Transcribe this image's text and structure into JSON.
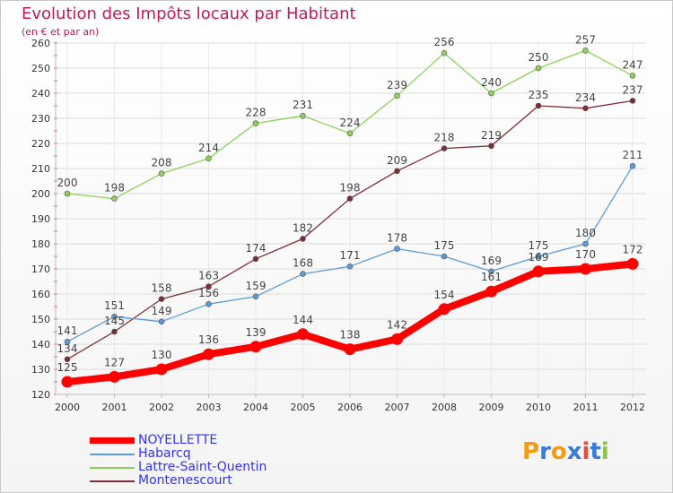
{
  "title": "Evolution des Impôts locaux par Habitant",
  "subtitle": "(en € et par an)",
  "logo": {
    "text": "Proxiti",
    "letters": [
      "P",
      "r",
      "o",
      "x",
      "i",
      "t",
      "i"
    ],
    "colors": [
      "#f39c12",
      "#3a7bd5",
      "#f39c12",
      "#3a7bd5",
      "#e74c3c",
      "#3a7bd5",
      "#8bc34a"
    ]
  },
  "chart_data": {
    "type": "line",
    "categories": [
      "2000",
      "2001",
      "2002",
      "2003",
      "2004",
      "2005",
      "2006",
      "2007",
      "2008",
      "2009",
      "2010",
      "2011",
      "2012"
    ],
    "ylim": [
      120,
      260
    ],
    "yticks": [
      120,
      130,
      140,
      150,
      160,
      170,
      180,
      190,
      200,
      210,
      220,
      230,
      240,
      250,
      260
    ],
    "grid": true,
    "legend_position": "bottom",
    "series": [
      {
        "name": "NOYELLETTE",
        "color": "#ff0000",
        "values": [
          125,
          127,
          130,
          136,
          139,
          144,
          138,
          142,
          154,
          161,
          169,
          170,
          172
        ]
      },
      {
        "name": "Habarcq",
        "color": "#5b9bd5",
        "values": [
          141,
          151,
          149,
          156,
          159,
          168,
          171,
          178,
          175,
          169,
          175,
          180,
          211
        ]
      },
      {
        "name": "Lattre-Saint-Quentin",
        "color": "#8cd15a",
        "values": [
          200,
          198,
          208,
          214,
          228,
          231,
          224,
          239,
          256,
          240,
          250,
          257,
          247
        ]
      },
      {
        "name": "Montenescourt",
        "color": "#7b2e35",
        "values": [
          134,
          145,
          158,
          163,
          174,
          182,
          198,
          209,
          218,
          219,
          235,
          234,
          237
        ]
      }
    ]
  }
}
